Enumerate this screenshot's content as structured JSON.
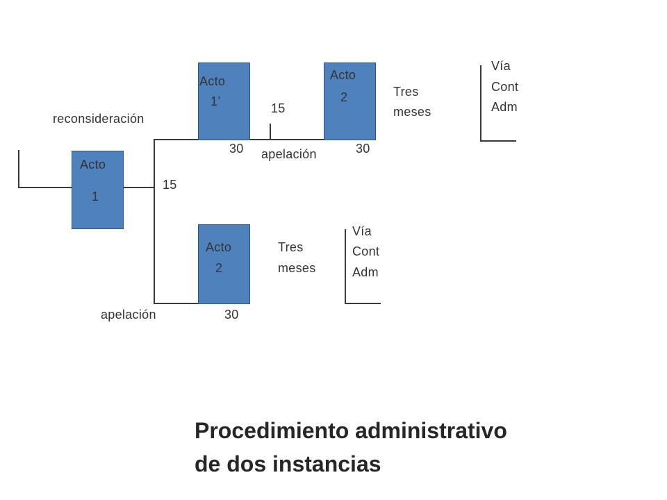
{
  "acto1": {
    "label": "Acto",
    "num": "1"
  },
  "acto1p": {
    "label": "Acto",
    "num": "1’"
  },
  "acto2_top": {
    "label": "Acto",
    "num": "2"
  },
  "acto2_bottom": {
    "label": "Acto",
    "num": "2"
  },
  "labels": {
    "reconsideracion": "reconsideración",
    "plazo_15_mid": "15",
    "plazo_15_top": "15",
    "plazo_30_acto1p": "30",
    "plazo_30_acto2_top": "30",
    "apelacion_top": "apelación",
    "apelacion_bottom": "apelación",
    "plazo_30_bottom": "30"
  },
  "tres_meses_top": {
    "line1": "Tres",
    "line2": "meses"
  },
  "tres_meses_bottom": {
    "line1": "Tres",
    "line2": "meses"
  },
  "via_top": {
    "line1": "Vía",
    "line2": "Cont",
    "line3": "Adm"
  },
  "via_bottom": {
    "line1": "Vía",
    "line2": "Cont",
    "line3": "Adm"
  },
  "title": {
    "line1": "Procedimiento administrativo",
    "line2": "de dos instancias"
  },
  "colors": {
    "box_fill": "#4f81bd",
    "box_border": "#2e5483",
    "line": "#3a3a3a"
  }
}
